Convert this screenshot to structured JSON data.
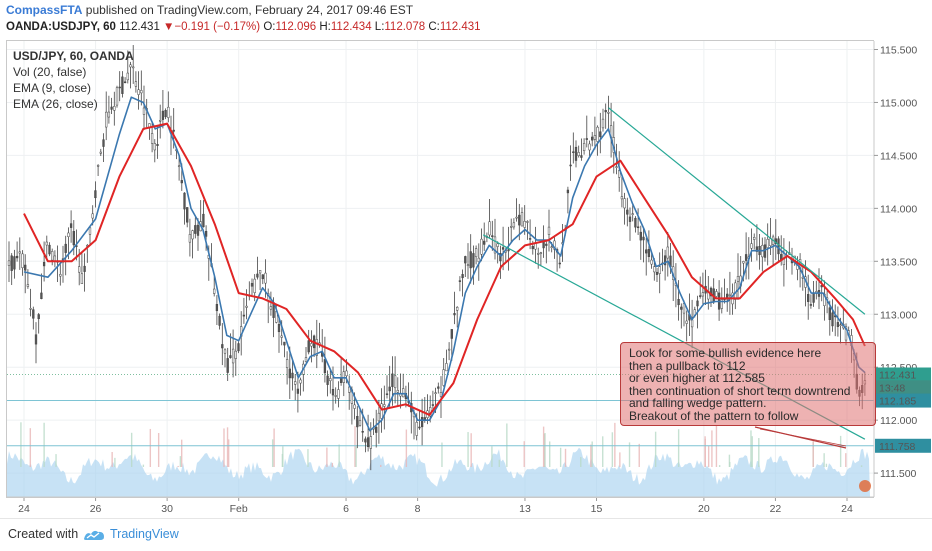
{
  "header": {
    "author": "CompassFTA",
    "published": "published on TradingView.com, February 24, 2017 09:46 EST"
  },
  "ohlc": {
    "symbol": "OANDA:USDJPY, 60",
    "last": "112.431",
    "arrow": "▼",
    "change": "−0.191 (−0.17%)",
    "o_label": "O:",
    "o": "112.096",
    "h_label": "H:",
    "h": "112.434",
    "l_label": "L:",
    "l": "112.078",
    "c_label": "C:",
    "c": "112.431"
  },
  "legend": {
    "title": "USD/JPY, 60, OANDA",
    "items": [
      "Vol (20, false)",
      "EMA (9, close)",
      "EMA (26, close)"
    ]
  },
  "annotation": {
    "lines": [
      "Look for some bullish evidence here",
      "then a pullback to 112",
      "or even higher at 112.585",
      "then continuation of short term downtrend",
      "and falling wedge pattern.",
      "Breakout of the pattern to follow"
    ]
  },
  "footer": {
    "created_with": "Created with",
    "brand": "TradingView"
  },
  "colors": {
    "ema_fast": "#3b78b0",
    "ema_slow": "#e02525",
    "candle": "#444444",
    "wedge": "#28a896",
    "volume": "#a9d3ef",
    "level_line": "#7ec4d4",
    "annotation_fill": "#e07373",
    "price_label": "#2f9e8f"
  },
  "chart_data": {
    "type": "line",
    "title": "USD/JPY, 60, OANDA",
    "xlabel": "",
    "ylabel": "",
    "ylim": [
      111.35,
      115.6
    ],
    "y_ticks": [
      111.5,
      112.0,
      112.5,
      113.0,
      113.5,
      114.0,
      114.5,
      115.0,
      115.5
    ],
    "y_tick_labels": [
      "111.500",
      "112.000",
      "112.500",
      "113.000",
      "113.500",
      "114.000",
      "114.500",
      "115.000",
      "115.500"
    ],
    "x_tick_labels": [
      "24",
      "26",
      "30",
      "Feb",
      "6",
      "8",
      "13",
      "15",
      "20",
      "22",
      "24"
    ],
    "x_tick_index": [
      0,
      12,
      24,
      36,
      54,
      66,
      84,
      96,
      114,
      126,
      138
    ],
    "x_max_index": 141,
    "price_labels": [
      {
        "text": "112.431",
        "value": 112.431,
        "kind": "last"
      },
      {
        "text": "13:48",
        "value": 112.31,
        "kind": "timer"
      },
      {
        "text": "112.185",
        "value": 112.185,
        "kind": "level"
      },
      {
        "text": "111.758",
        "value": 111.758,
        "kind": "level"
      }
    ],
    "horizontal_levels": [
      112.185,
      111.758
    ],
    "dotted_level": 112.431,
    "price_path": [
      [
        0,
        113.5
      ],
      [
        2,
        112.8
      ],
      [
        4,
        113.7
      ],
      [
        6,
        113.4
      ],
      [
        8,
        113.8
      ],
      [
        10,
        113.3
      ],
      [
        12,
        114.2
      ],
      [
        14,
        114.9
      ],
      [
        16,
        115.1
      ],
      [
        18,
        115.35
      ],
      [
        20,
        115.0
      ],
      [
        22,
        114.6
      ],
      [
        24,
        115.0
      ],
      [
        26,
        114.4
      ],
      [
        28,
        113.7
      ],
      [
        30,
        113.9
      ],
      [
        32,
        113.2
      ],
      [
        34,
        112.5
      ],
      [
        36,
        112.7
      ],
      [
        38,
        113.2
      ],
      [
        40,
        113.4
      ],
      [
        42,
        113.0
      ],
      [
        44,
        112.6
      ],
      [
        46,
        112.2
      ],
      [
        48,
        112.8
      ],
      [
        50,
        112.6
      ],
      [
        52,
        112.2
      ],
      [
        54,
        112.45
      ],
      [
        56,
        112.0
      ],
      [
        58,
        111.75
      ],
      [
        60,
        112.1
      ],
      [
        62,
        112.4
      ],
      [
        64,
        112.25
      ],
      [
        66,
        111.9
      ],
      [
        68,
        112.05
      ],
      [
        70,
        112.3
      ],
      [
        72,
        112.9
      ],
      [
        74,
        113.5
      ],
      [
        76,
        113.55
      ],
      [
        78,
        113.8
      ],
      [
        80,
        113.5
      ],
      [
        82,
        113.8
      ],
      [
        84,
        113.9
      ],
      [
        86,
        113.6
      ],
      [
        88,
        113.75
      ],
      [
        90,
        113.5
      ],
      [
        92,
        114.5
      ],
      [
        94,
        114.55
      ],
      [
        96,
        114.7
      ],
      [
        98,
        114.9
      ],
      [
        100,
        114.2
      ],
      [
        102,
        113.9
      ],
      [
        104,
        113.7
      ],
      [
        106,
        113.3
      ],
      [
        108,
        113.6
      ],
      [
        110,
        113.1
      ],
      [
        112,
        112.9
      ],
      [
        114,
        113.2
      ],
      [
        116,
        113.15
      ],
      [
        118,
        113.1
      ],
      [
        120,
        113.3
      ],
      [
        122,
        113.7
      ],
      [
        124,
        113.6
      ],
      [
        126,
        113.7
      ],
      [
        128,
        113.5
      ],
      [
        130,
        113.5
      ],
      [
        132,
        113.1
      ],
      [
        134,
        113.2
      ],
      [
        136,
        112.9
      ],
      [
        138,
        112.8
      ],
      [
        139,
        112.7
      ],
      [
        140,
        112.2
      ],
      [
        141,
        112.43
      ]
    ],
    "series": [
      {
        "name": "EMA (9, close)",
        "values": [
          [
            0,
            113.4
          ],
          [
            4,
            113.35
          ],
          [
            8,
            113.6
          ],
          [
            12,
            113.9
          ],
          [
            16,
            114.7
          ],
          [
            18,
            115.05
          ],
          [
            20,
            115.0
          ],
          [
            22,
            114.75
          ],
          [
            24,
            114.8
          ],
          [
            26,
            114.5
          ],
          [
            28,
            114.0
          ],
          [
            30,
            113.8
          ],
          [
            32,
            113.35
          ],
          [
            34,
            112.8
          ],
          [
            36,
            112.75
          ],
          [
            38,
            113.0
          ],
          [
            40,
            113.25
          ],
          [
            42,
            113.1
          ],
          [
            44,
            112.75
          ],
          [
            46,
            112.4
          ],
          [
            48,
            112.6
          ],
          [
            50,
            112.65
          ],
          [
            52,
            112.4
          ],
          [
            54,
            112.4
          ],
          [
            56,
            112.15
          ],
          [
            58,
            111.9
          ],
          [
            60,
            112.0
          ],
          [
            62,
            112.25
          ],
          [
            64,
            112.25
          ],
          [
            66,
            112.0
          ],
          [
            68,
            112.0
          ],
          [
            70,
            112.2
          ],
          [
            72,
            112.65
          ],
          [
            74,
            113.2
          ],
          [
            76,
            113.45
          ],
          [
            78,
            113.65
          ],
          [
            80,
            113.55
          ],
          [
            82,
            113.7
          ],
          [
            84,
            113.8
          ],
          [
            86,
            113.7
          ],
          [
            88,
            113.7
          ],
          [
            90,
            113.55
          ],
          [
            92,
            114.1
          ],
          [
            94,
            114.4
          ],
          [
            96,
            114.6
          ],
          [
            98,
            114.75
          ],
          [
            100,
            114.35
          ],
          [
            102,
            114.05
          ],
          [
            104,
            113.8
          ],
          [
            106,
            113.45
          ],
          [
            108,
            113.5
          ],
          [
            110,
            113.2
          ],
          [
            112,
            112.95
          ],
          [
            114,
            113.1
          ],
          [
            116,
            113.12
          ],
          [
            118,
            113.12
          ],
          [
            120,
            113.25
          ],
          [
            122,
            113.6
          ],
          [
            124,
            113.6
          ],
          [
            126,
            113.65
          ],
          [
            128,
            113.55
          ],
          [
            130,
            113.45
          ],
          [
            132,
            113.2
          ],
          [
            134,
            113.2
          ],
          [
            136,
            113.0
          ],
          [
            138,
            112.85
          ],
          [
            140,
            112.5
          ],
          [
            141,
            112.45
          ]
        ]
      },
      {
        "name": "EMA (26, close)",
        "values": [
          [
            0,
            113.95
          ],
          [
            4,
            113.5
          ],
          [
            8,
            113.5
          ],
          [
            12,
            113.7
          ],
          [
            16,
            114.3
          ],
          [
            20,
            114.75
          ],
          [
            24,
            114.8
          ],
          [
            28,
            114.4
          ],
          [
            32,
            113.85
          ],
          [
            36,
            113.2
          ],
          [
            40,
            113.15
          ],
          [
            44,
            113.05
          ],
          [
            48,
            112.75
          ],
          [
            52,
            112.65
          ],
          [
            56,
            112.45
          ],
          [
            60,
            112.1
          ],
          [
            64,
            112.15
          ],
          [
            68,
            112.05
          ],
          [
            72,
            112.35
          ],
          [
            76,
            112.95
          ],
          [
            80,
            113.45
          ],
          [
            84,
            113.65
          ],
          [
            88,
            113.7
          ],
          [
            92,
            113.85
          ],
          [
            96,
            114.3
          ],
          [
            100,
            114.45
          ],
          [
            104,
            114.1
          ],
          [
            108,
            113.75
          ],
          [
            112,
            113.35
          ],
          [
            116,
            113.15
          ],
          [
            120,
            113.15
          ],
          [
            124,
            113.4
          ],
          [
            128,
            113.55
          ],
          [
            132,
            113.4
          ],
          [
            136,
            113.15
          ],
          [
            139,
            112.95
          ],
          [
            141,
            112.7
          ]
        ]
      }
    ],
    "wedge_lines": [
      {
        "from": [
          98,
          114.95
        ],
        "to": [
          141,
          113.0
        ]
      },
      {
        "from": [
          77,
          113.75
        ],
        "to": [
          141,
          111.82
        ]
      }
    ]
  }
}
